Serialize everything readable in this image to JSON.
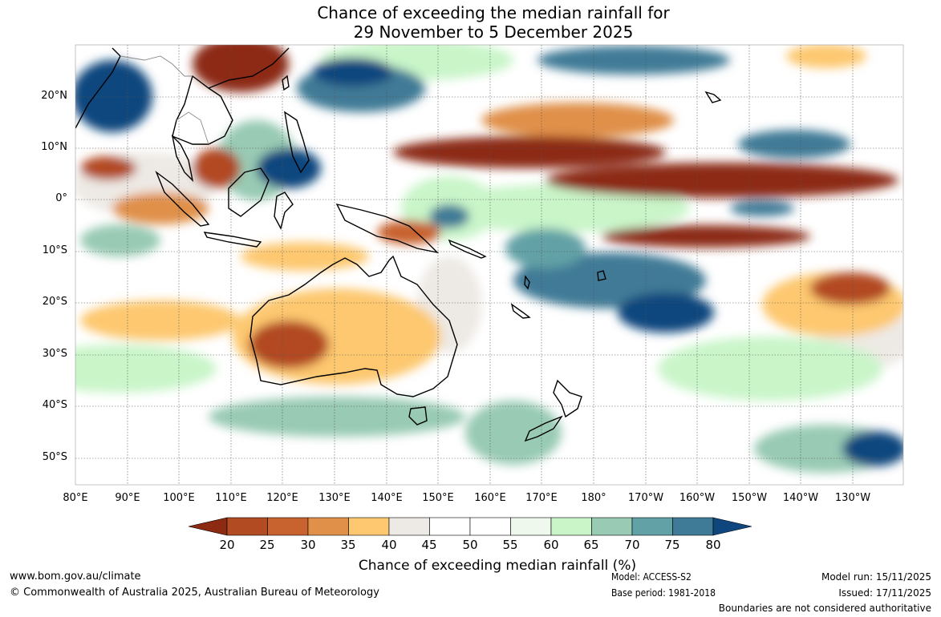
{
  "title": {
    "line1": "Chance of exceeding the median rainfall for",
    "line2": "29 November to 5 December 2025"
  },
  "lat_labels": [
    "20°N",
    "10°N",
    "0°",
    "10°S",
    "20°S",
    "30°S",
    "40°S",
    "50°S"
  ],
  "lon_labels": [
    "80°E",
    "90°E",
    "100°E",
    "110°E",
    "120°E",
    "130°E",
    "140°E",
    "150°E",
    "160°E",
    "170°E",
    "180°",
    "170°W",
    "160°W",
    "150°W",
    "140°W",
    "130°W"
  ],
  "legend": {
    "title": "Chance of exceeding median rainfall (%)",
    "ticks": [
      "20",
      "25",
      "30",
      "35",
      "40",
      "45",
      "50",
      "55",
      "60",
      "65",
      "70",
      "75",
      "80"
    ],
    "colors": [
      "#8c2a12",
      "#b24a22",
      "#c8622e",
      "#e09048",
      "#fdc870",
      "#ede9e4",
      "#ffffff",
      "#ffffff",
      "#eef8ec",
      "#c9f5c9",
      "#98cab4",
      "#62a1a6",
      "#3f7a96",
      "#10467e"
    ]
  },
  "footer": {
    "website": "www.bom.gov.au/climate",
    "copyright": "© Commonwealth of Australia 2025, Australian Bureau of Meteorology",
    "model": "Model: ACCESS-S2",
    "base_period": "Base period: 1981-2018",
    "model_run": "Model run: 15/11/2025",
    "issued": "Issued: 17/11/2025",
    "disclaimer": "Boundaries are not considered authoritative"
  }
}
